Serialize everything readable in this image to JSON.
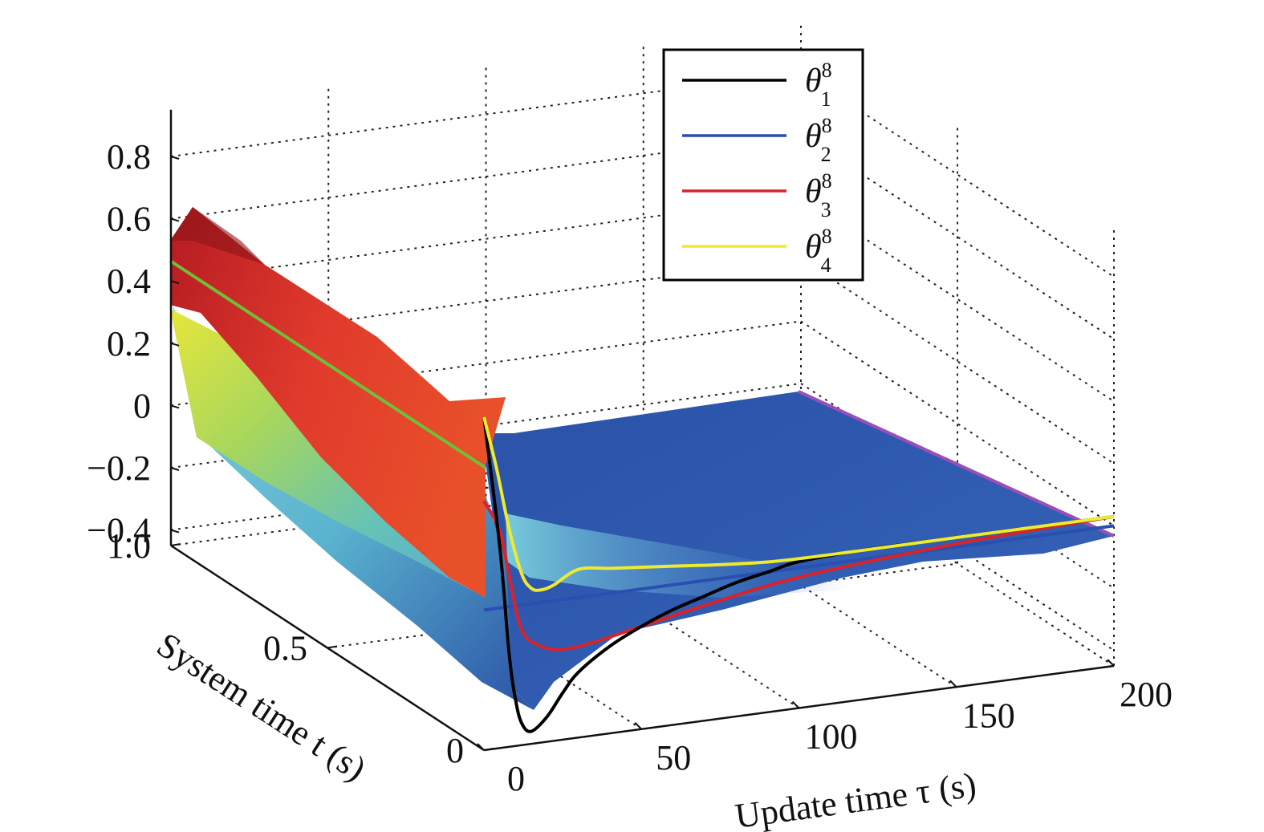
{
  "chart_data": {
    "type": "surface3d",
    "title": "",
    "x_axis": {
      "label": "Update time τ (s)",
      "ticks": [
        "0",
        "50",
        "100",
        "150",
        "200"
      ],
      "range": [
        0,
        200
      ]
    },
    "y_axis": {
      "label": "System time t (s)",
      "ticks": [
        "0",
        "0.5",
        "1.0"
      ],
      "range": [
        0,
        1.0
      ]
    },
    "z_axis": {
      "label": "",
      "ticks": [
        "−0.4",
        "−0.2",
        "0",
        "0.2",
        "0.4",
        "0.6",
        "0.8"
      ],
      "range": [
        -0.45,
        0.95
      ]
    },
    "grid": true,
    "legend": {
      "placement": "top-center",
      "entries": [
        {
          "symbol": "θ",
          "sub": "1",
          "sup": "8",
          "color": "#000000"
        },
        {
          "symbol": "θ",
          "sub": "2",
          "sup": "8",
          "color": "#2b4fb0"
        },
        {
          "symbol": "θ",
          "sub": "3",
          "sup": "8",
          "color": "#d8232a"
        },
        {
          "symbol": "θ",
          "sub": "4",
          "sup": "8",
          "color": "#eeea30"
        }
      ]
    },
    "series": [
      {
        "color": "#000000",
        "tau": [
          0,
          5,
          8,
          10,
          12,
          15,
          20,
          25,
          30,
          40,
          50,
          60,
          70,
          80,
          90,
          100,
          120,
          150,
          200
        ],
        "theta": [
          0.62,
          0.2,
          -0.15,
          -0.3,
          -0.38,
          -0.41,
          -0.37,
          -0.3,
          -0.24,
          -0.17,
          -0.12,
          -0.08,
          -0.05,
          -0.02,
          0.0,
          0.02,
          0.03,
          0.03,
          0.03
        ]
      },
      {
        "color": "#2b4fb0",
        "tau": [
          0,
          200
        ],
        "theta": [
          0.0,
          0.0
        ]
      },
      {
        "color": "#d8232a",
        "tau": [
          0,
          5,
          8,
          12,
          18,
          25,
          35,
          50,
          70,
          100,
          150,
          200
        ],
        "theta": [
          0.35,
          0.25,
          0.1,
          -0.08,
          -0.14,
          -0.16,
          -0.15,
          -0.12,
          -0.08,
          -0.03,
          0.01,
          0.03
        ]
      },
      {
        "color": "#eeea30",
        "tau": [
          0,
          4,
          8,
          12,
          15,
          18,
          22,
          30,
          40,
          50,
          60,
          80,
          100,
          150,
          200
        ],
        "theta": [
          0.62,
          0.45,
          0.25,
          0.1,
          0.05,
          0.04,
          0.05,
          0.09,
          0.08,
          0.07,
          0.06,
          0.04,
          0.03,
          0.03,
          0.03
        ]
      }
    ]
  }
}
